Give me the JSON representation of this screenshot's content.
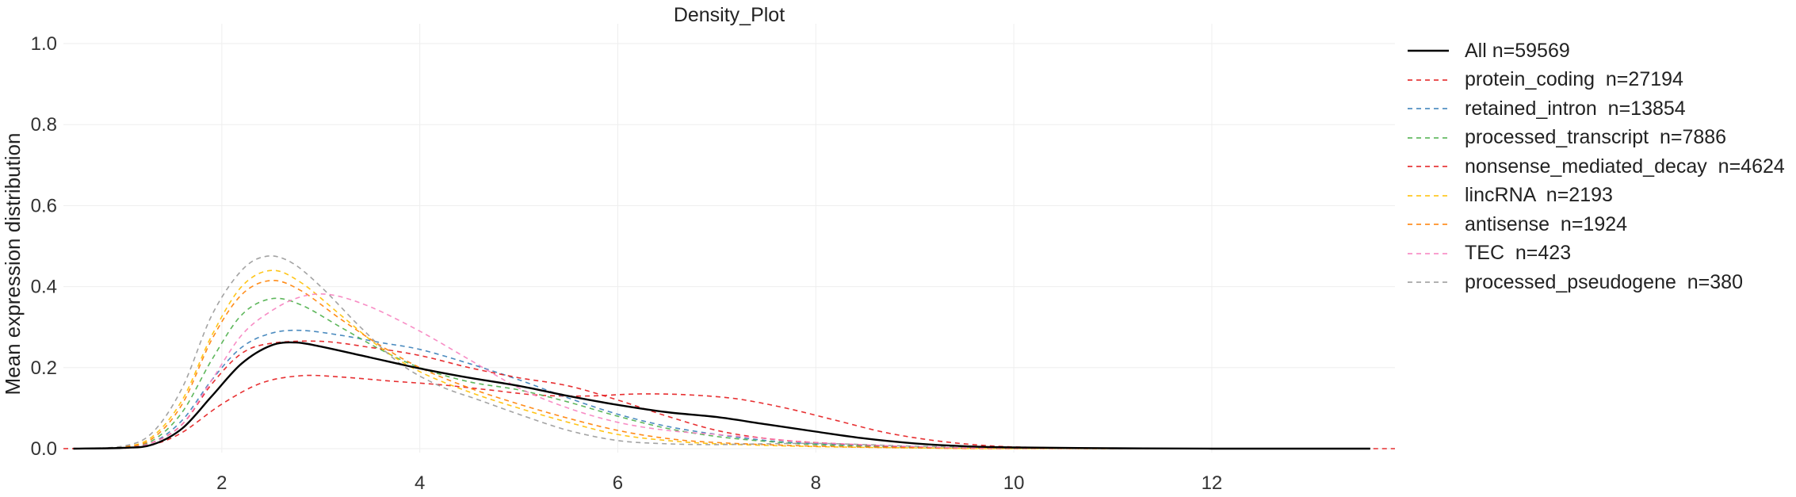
{
  "chart_data": {
    "type": "line",
    "title": "Density_Plot",
    "xlabel": "",
    "ylabel": "Mean expression distribution",
    "xlim": [
      0.4,
      13.85
    ],
    "ylim": [
      0,
      1.0
    ],
    "xticks": [
      2,
      4,
      6,
      8,
      10,
      12
    ],
    "yticks": [
      0.0,
      0.2,
      0.4,
      0.6,
      0.8,
      1.0
    ],
    "ytick_labels": [
      "0.0",
      "0.2",
      "0.4",
      "0.6",
      "0.8",
      "1.0"
    ],
    "grid": true,
    "legend_position": "right",
    "series": [
      {
        "name": "All n=59569",
        "color": "#000000",
        "dash": "solid",
        "points": [
          [
            0.5,
            0
          ],
          [
            1.0,
            0.002
          ],
          [
            1.3,
            0.01
          ],
          [
            1.6,
            0.05
          ],
          [
            1.9,
            0.13
          ],
          [
            2.2,
            0.21
          ],
          [
            2.5,
            0.255
          ],
          [
            2.75,
            0.262
          ],
          [
            3.0,
            0.252
          ],
          [
            3.5,
            0.225
          ],
          [
            4.0,
            0.198
          ],
          [
            4.5,
            0.175
          ],
          [
            5.0,
            0.155
          ],
          [
            5.5,
            0.13
          ],
          [
            6.0,
            0.108
          ],
          [
            6.5,
            0.09
          ],
          [
            7.0,
            0.078
          ],
          [
            7.5,
            0.06
          ],
          [
            8.0,
            0.042
          ],
          [
            8.5,
            0.025
          ],
          [
            9.0,
            0.013
          ],
          [
            9.5,
            0.006
          ],
          [
            10.0,
            0.003
          ],
          [
            11.0,
            0.001
          ],
          [
            12.0,
            0
          ],
          [
            13.6,
            0
          ]
        ]
      },
      {
        "name": "protein_coding  n=27194",
        "color": "#e41a1c",
        "dash": "dashed",
        "points": [
          [
            0.4,
            0
          ],
          [
            1.0,
            0.001
          ],
          [
            1.3,
            0.01
          ],
          [
            1.6,
            0.04
          ],
          [
            2.0,
            0.11
          ],
          [
            2.4,
            0.162
          ],
          [
            2.8,
            0.18
          ],
          [
            3.2,
            0.177
          ],
          [
            3.7,
            0.167
          ],
          [
            4.2,
            0.158
          ],
          [
            4.7,
            0.145
          ],
          [
            5.2,
            0.132
          ],
          [
            5.7,
            0.13
          ],
          [
            6.2,
            0.135
          ],
          [
            6.7,
            0.133
          ],
          [
            7.2,
            0.123
          ],
          [
            7.7,
            0.1
          ],
          [
            8.2,
            0.07
          ],
          [
            8.7,
            0.04
          ],
          [
            9.2,
            0.02
          ],
          [
            9.7,
            0.008
          ],
          [
            10.2,
            0.003
          ],
          [
            11.0,
            0.001
          ],
          [
            12.0,
            0
          ],
          [
            13.85,
            0
          ]
        ]
      },
      {
        "name": "retained_intron  n=13854",
        "color": "#377eb8",
        "dash": "dashed",
        "points": [
          [
            0.5,
            0
          ],
          [
            1.0,
            0.002
          ],
          [
            1.3,
            0.015
          ],
          [
            1.6,
            0.07
          ],
          [
            1.9,
            0.17
          ],
          [
            2.2,
            0.25
          ],
          [
            2.5,
            0.285
          ],
          [
            2.8,
            0.292
          ],
          [
            3.2,
            0.28
          ],
          [
            3.6,
            0.262
          ],
          [
            4.0,
            0.245
          ],
          [
            4.5,
            0.21
          ],
          [
            5.0,
            0.17
          ],
          [
            5.5,
            0.125
          ],
          [
            6.0,
            0.085
          ],
          [
            6.5,
            0.055
          ],
          [
            7.0,
            0.035
          ],
          [
            7.5,
            0.02
          ],
          [
            8.0,
            0.012
          ],
          [
            9.0,
            0.004
          ],
          [
            10.0,
            0.001
          ],
          [
            12.0,
            0
          ],
          [
            13.6,
            0
          ]
        ]
      },
      {
        "name": "processed_transcript  n=7886",
        "color": "#4daf4a",
        "dash": "dashed",
        "points": [
          [
            0.5,
            0
          ],
          [
            1.0,
            0.003
          ],
          [
            1.3,
            0.02
          ],
          [
            1.6,
            0.09
          ],
          [
            1.9,
            0.22
          ],
          [
            2.2,
            0.33
          ],
          [
            2.5,
            0.37
          ],
          [
            2.8,
            0.355
          ],
          [
            3.2,
            0.3
          ],
          [
            3.6,
            0.245
          ],
          [
            4.0,
            0.2
          ],
          [
            4.5,
            0.165
          ],
          [
            5.0,
            0.145
          ],
          [
            5.5,
            0.115
          ],
          [
            6.0,
            0.08
          ],
          [
            6.5,
            0.05
          ],
          [
            7.0,
            0.03
          ],
          [
            7.5,
            0.018
          ],
          [
            8.0,
            0.01
          ],
          [
            9.0,
            0.003
          ],
          [
            10.0,
            0.001
          ],
          [
            12.0,
            0
          ],
          [
            13.6,
            0
          ]
        ]
      },
      {
        "name": "nonsense_mediated_decay  n=4624",
        "color": "#e41a1c",
        "dash": "dashed",
        "points": [
          [
            0.5,
            0
          ],
          [
            1.0,
            0.002
          ],
          [
            1.3,
            0.015
          ],
          [
            1.6,
            0.06
          ],
          [
            1.9,
            0.16
          ],
          [
            2.2,
            0.235
          ],
          [
            2.5,
            0.26
          ],
          [
            3.0,
            0.265
          ],
          [
            3.5,
            0.25
          ],
          [
            4.0,
            0.23
          ],
          [
            4.5,
            0.2
          ],
          [
            5.0,
            0.175
          ],
          [
            5.5,
            0.155
          ],
          [
            6.0,
            0.12
          ],
          [
            6.5,
            0.08
          ],
          [
            7.0,
            0.045
          ],
          [
            7.5,
            0.025
          ],
          [
            8.0,
            0.015
          ],
          [
            9.0,
            0.004
          ],
          [
            10.0,
            0.001
          ],
          [
            12.0,
            0
          ],
          [
            13.6,
            0
          ]
        ]
      },
      {
        "name": "lincRNA  n=2193",
        "color": "#ffbf00",
        "dash": "dashed",
        "points": [
          [
            0.5,
            0
          ],
          [
            1.0,
            0.004
          ],
          [
            1.3,
            0.03
          ],
          [
            1.6,
            0.12
          ],
          [
            1.9,
            0.28
          ],
          [
            2.2,
            0.4
          ],
          [
            2.5,
            0.44
          ],
          [
            2.8,
            0.41
          ],
          [
            3.2,
            0.33
          ],
          [
            3.6,
            0.25
          ],
          [
            4.0,
            0.19
          ],
          [
            4.5,
            0.14
          ],
          [
            5.0,
            0.1
          ],
          [
            5.5,
            0.065
          ],
          [
            6.0,
            0.035
          ],
          [
            6.5,
            0.02
          ],
          [
            7.0,
            0.012
          ],
          [
            8.0,
            0.005
          ],
          [
            9.0,
            0.002
          ],
          [
            10.0,
            0
          ],
          [
            13.6,
            0
          ]
        ]
      },
      {
        "name": "antisense  n=1924",
        "color": "#ff7f00",
        "dash": "dashed",
        "points": [
          [
            0.5,
            0
          ],
          [
            1.0,
            0.004
          ],
          [
            1.3,
            0.025
          ],
          [
            1.6,
            0.11
          ],
          [
            1.9,
            0.27
          ],
          [
            2.2,
            0.38
          ],
          [
            2.5,
            0.415
          ],
          [
            2.8,
            0.39
          ],
          [
            3.2,
            0.32
          ],
          [
            3.6,
            0.255
          ],
          [
            4.0,
            0.2
          ],
          [
            4.5,
            0.15
          ],
          [
            5.0,
            0.11
          ],
          [
            5.5,
            0.075
          ],
          [
            6.0,
            0.045
          ],
          [
            6.5,
            0.025
          ],
          [
            7.0,
            0.015
          ],
          [
            8.0,
            0.006
          ],
          [
            9.0,
            0.002
          ],
          [
            10.0,
            0
          ],
          [
            13.6,
            0
          ]
        ]
      },
      {
        "name": "TEC  n=423",
        "color": "#f781bf",
        "dash": "dashed",
        "points": [
          [
            0.5,
            0
          ],
          [
            1.0,
            0.002
          ],
          [
            1.3,
            0.015
          ],
          [
            1.6,
            0.06
          ],
          [
            1.9,
            0.17
          ],
          [
            2.2,
            0.28
          ],
          [
            2.5,
            0.34
          ],
          [
            2.8,
            0.375
          ],
          [
            3.1,
            0.38
          ],
          [
            3.5,
            0.35
          ],
          [
            4.0,
            0.29
          ],
          [
            4.5,
            0.22
          ],
          [
            5.0,
            0.15
          ],
          [
            5.5,
            0.1
          ],
          [
            6.0,
            0.065
          ],
          [
            6.5,
            0.045
          ],
          [
            7.0,
            0.035
          ],
          [
            7.5,
            0.025
          ],
          [
            8.0,
            0.015
          ],
          [
            9.0,
            0.005
          ],
          [
            10.0,
            0.001
          ],
          [
            13.6,
            0
          ]
        ]
      },
      {
        "name": "processed_pseudogene  n=380",
        "color": "#999999",
        "dash": "dashed",
        "points": [
          [
            0.5,
            0
          ],
          [
            1.0,
            0.006
          ],
          [
            1.3,
            0.04
          ],
          [
            1.6,
            0.15
          ],
          [
            1.9,
            0.33
          ],
          [
            2.2,
            0.44
          ],
          [
            2.45,
            0.475
          ],
          [
            2.7,
            0.46
          ],
          [
            3.0,
            0.4
          ],
          [
            3.4,
            0.3
          ],
          [
            3.8,
            0.21
          ],
          [
            4.2,
            0.155
          ],
          [
            4.6,
            0.12
          ],
          [
            5.0,
            0.085
          ],
          [
            5.5,
            0.045
          ],
          [
            6.0,
            0.02
          ],
          [
            6.5,
            0.012
          ],
          [
            7.0,
            0.01
          ],
          [
            7.5,
            0.012
          ],
          [
            8.0,
            0.013
          ],
          [
            8.5,
            0.01
          ],
          [
            9.0,
            0.006
          ],
          [
            10.0,
            0.002
          ],
          [
            11.0,
            0
          ],
          [
            13.6,
            0
          ]
        ]
      }
    ]
  }
}
